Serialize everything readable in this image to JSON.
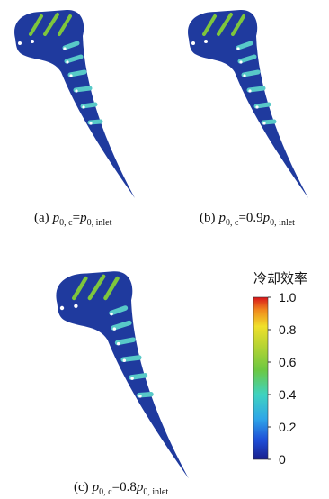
{
  "panels": [
    {
      "label": "(a)",
      "lhs_symbol": "p",
      "lhs_sub": "0, c",
      "relation": "=",
      "rhs_symbol": "p",
      "rhs_sub": "0, inlet"
    },
    {
      "label": "(b)",
      "lhs_symbol": "p",
      "lhs_sub": "0, c",
      "relation": "=0.9",
      "rhs_symbol": "p",
      "rhs_sub": "0, inlet"
    },
    {
      "label": "(c)",
      "lhs_symbol": "p",
      "lhs_sub": "0, c",
      "relation": "=0.8",
      "rhs_symbol": "p",
      "rhs_sub": "0, inlet"
    }
  ],
  "colorbar": {
    "title": "冷却效率",
    "range": [
      0,
      1
    ],
    "ticks": [
      0,
      {
        "value": 0.2,
        "label": "0.2"
      },
      {
        "value": 0.4,
        "label": "0.4"
      },
      {
        "value": 0.6,
        "label": "0.6"
      },
      {
        "value": 0.8,
        "label": "0.8"
      },
      {
        "value": 1,
        "label": "1.0"
      }
    ]
  }
}
